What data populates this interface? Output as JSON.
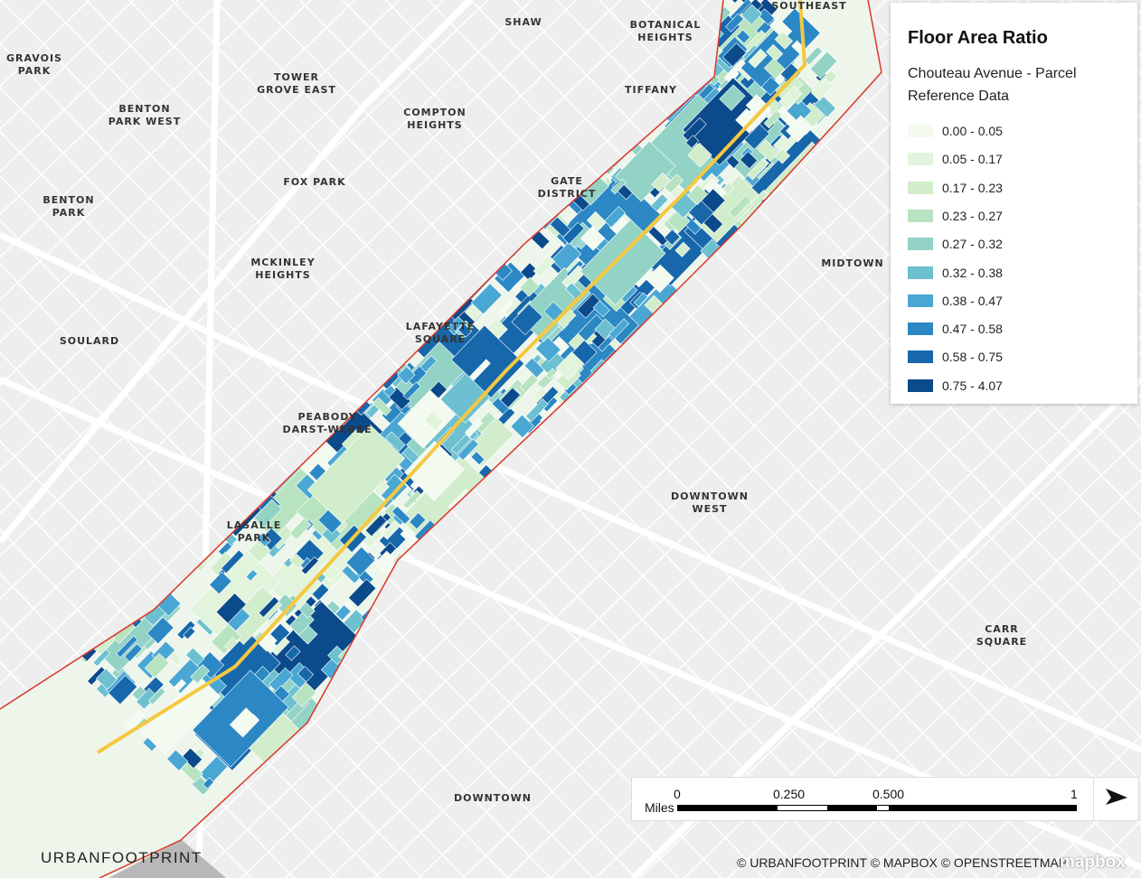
{
  "map_labels": [
    {
      "lines": [
        "GRAVOIS",
        "PARK"
      ]
    },
    {
      "lines": [
        "SHAW"
      ]
    },
    {
      "lines": [
        "BOTANICAL",
        "HEIGHTS"
      ]
    },
    {
      "lines": [
        "SOUTHEAST"
      ]
    },
    {
      "lines": [
        "TOWER",
        "GROVE EAST"
      ]
    },
    {
      "lines": [
        "TIFFANY"
      ]
    },
    {
      "lines": [
        "BENTON",
        "PARK WEST"
      ]
    },
    {
      "lines": [
        "COMPTON",
        "HEIGHTS"
      ]
    },
    {
      "lines": [
        "FOX PARK"
      ]
    },
    {
      "lines": [
        "GATE",
        "DISTRICT"
      ]
    },
    {
      "lines": [
        "BENTON",
        "PARK"
      ]
    },
    {
      "lines": [
        "MCKINLEY",
        "HEIGHTS"
      ]
    },
    {
      "lines": [
        "MIDTOWN"
      ]
    },
    {
      "lines": [
        "SOULARD"
      ]
    },
    {
      "lines": [
        "LAFAYETTE",
        "SQUARE"
      ]
    },
    {
      "lines": [
        "PEABODY",
        "DARST-WEBBE"
      ]
    },
    {
      "lines": [
        "LASALLE",
        "PARK"
      ]
    },
    {
      "lines": [
        "DOWNTOWN",
        "WEST"
      ]
    },
    {
      "lines": [
        "CARR",
        "SQUARE"
      ]
    },
    {
      "lines": [
        "DOWNTOWN"
      ]
    }
  ],
  "legend": {
    "title": "Floor Area Ratio",
    "subtitle": "Chouteau Avenue - Parcel Reference Data",
    "items": [
      {
        "label": "0.00 - 0.05",
        "color": "#f3faf0"
      },
      {
        "label": "0.05 - 0.17",
        "color": "#e3f4dd"
      },
      {
        "label": "0.17 - 0.23",
        "color": "#d2edcc"
      },
      {
        "label": "0.23 - 0.27",
        "color": "#b8e3c0"
      },
      {
        "label": "0.27 - 0.32",
        "color": "#93d3c6"
      },
      {
        "label": "0.32 - 0.38",
        "color": "#6cc0d0"
      },
      {
        "label": "0.38 - 0.47",
        "color": "#4aa7d3"
      },
      {
        "label": "0.47 - 0.58",
        "color": "#2b88c4"
      },
      {
        "label": "0.58 - 0.75",
        "color": "#1767ab"
      },
      {
        "label": "0.75 - 4.07",
        "color": "#0b4a8b"
      }
    ]
  },
  "scale": {
    "unit": "Miles",
    "ticks": [
      "0",
      "0.250",
      "0.500",
      "1"
    ]
  },
  "attribution": "© URBANFOOTPRINT © MAPBOX © OPENSTREETMAP",
  "logo": "URBANFOOTPRINT",
  "provider": "mapbox"
}
